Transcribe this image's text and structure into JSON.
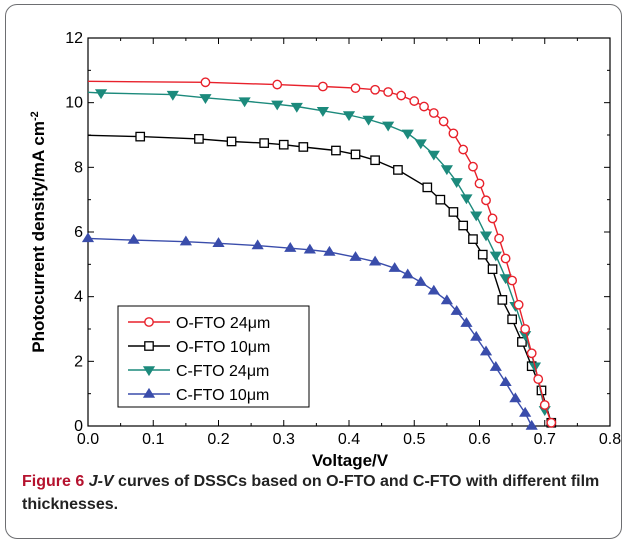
{
  "caption": {
    "figure_label": "Figure 6",
    "jv": "J-V",
    "text": " curves of DSSCs based on O-FTO and C-FTO with different film thicknesses."
  },
  "chart_data": {
    "type": "line",
    "title": "",
    "xlabel": "Voltage/V",
    "ylabel": "Photocurrent density/mA cm",
    "ylabel_sup": "-2",
    "xlim": [
      0.0,
      0.8
    ],
    "ylim": [
      0,
      12
    ],
    "x_ticks": [
      "0.0",
      "0.1",
      "0.2",
      "0.3",
      "0.4",
      "0.5",
      "0.6",
      "0.7",
      "0.8"
    ],
    "y_ticks": [
      "0",
      "2",
      "4",
      "6",
      "8",
      "10",
      "12"
    ],
    "legend_position": "bottom-left",
    "series": [
      {
        "name": "O-FTO 24μm",
        "color": "#e8212b",
        "marker": "open-circle",
        "x": [
          0.18,
          0.29,
          0.36,
          0.41,
          0.44,
          0.46,
          0.48,
          0.5,
          0.515,
          0.53,
          0.545,
          0.56,
          0.575,
          0.59,
          0.6,
          0.61,
          0.62,
          0.63,
          0.64,
          0.65,
          0.66,
          0.67,
          0.68,
          0.69,
          0.7,
          0.71
        ],
        "y": [
          10.63,
          10.56,
          10.5,
          10.45,
          10.4,
          10.33,
          10.22,
          10.05,
          9.88,
          9.68,
          9.42,
          9.05,
          8.55,
          8.02,
          7.5,
          6.98,
          6.42,
          5.8,
          5.18,
          4.5,
          3.75,
          3.0,
          2.25,
          1.45,
          0.65,
          0.1
        ]
      },
      {
        "name": "O-FTO 10μm",
        "color": "#000000",
        "marker": "open-square",
        "x": [
          0.08,
          0.17,
          0.22,
          0.27,
          0.3,
          0.33,
          0.38,
          0.41,
          0.44,
          0.475,
          0.52,
          0.54,
          0.56,
          0.575,
          0.59,
          0.605,
          0.62,
          0.635,
          0.65,
          0.665,
          0.68,
          0.695,
          0.71
        ],
        "y": [
          8.95,
          8.88,
          8.8,
          8.75,
          8.7,
          8.63,
          8.52,
          8.4,
          8.22,
          7.92,
          7.38,
          7.0,
          6.62,
          6.2,
          5.78,
          5.3,
          4.85,
          3.9,
          3.3,
          2.6,
          1.85,
          1.1,
          0.1
        ]
      },
      {
        "name": "C-FTO 24μm",
        "color": "#1c8a7c",
        "marker": "filled-triangle-down",
        "x": [
          0.02,
          0.13,
          0.18,
          0.24,
          0.29,
          0.32,
          0.36,
          0.4,
          0.43,
          0.46,
          0.49,
          0.51,
          0.53,
          0.55,
          0.565,
          0.58,
          0.595,
          0.61,
          0.625,
          0.64,
          0.655,
          0.67,
          0.685,
          0.7
        ],
        "y": [
          10.3,
          10.25,
          10.15,
          10.05,
          9.95,
          9.88,
          9.75,
          9.62,
          9.48,
          9.3,
          9.05,
          8.75,
          8.4,
          7.95,
          7.55,
          7.05,
          6.52,
          5.9,
          5.28,
          4.58,
          3.72,
          2.82,
          1.85,
          0.5
        ]
      },
      {
        "name": "C-FTO 10μm",
        "color": "#3a4dab",
        "marker": "filled-triangle-up",
        "x": [
          0.0,
          0.07,
          0.15,
          0.2,
          0.26,
          0.31,
          0.34,
          0.37,
          0.41,
          0.44,
          0.47,
          0.49,
          0.51,
          0.53,
          0.55,
          0.565,
          0.58,
          0.595,
          0.61,
          0.625,
          0.64,
          0.655,
          0.67,
          0.68
        ],
        "y": [
          5.8,
          5.75,
          5.7,
          5.65,
          5.58,
          5.5,
          5.45,
          5.38,
          5.22,
          5.08,
          4.88,
          4.68,
          4.45,
          4.18,
          3.88,
          3.55,
          3.18,
          2.75,
          2.3,
          1.82,
          1.35,
          0.85,
          0.4,
          0.0
        ]
      }
    ]
  }
}
